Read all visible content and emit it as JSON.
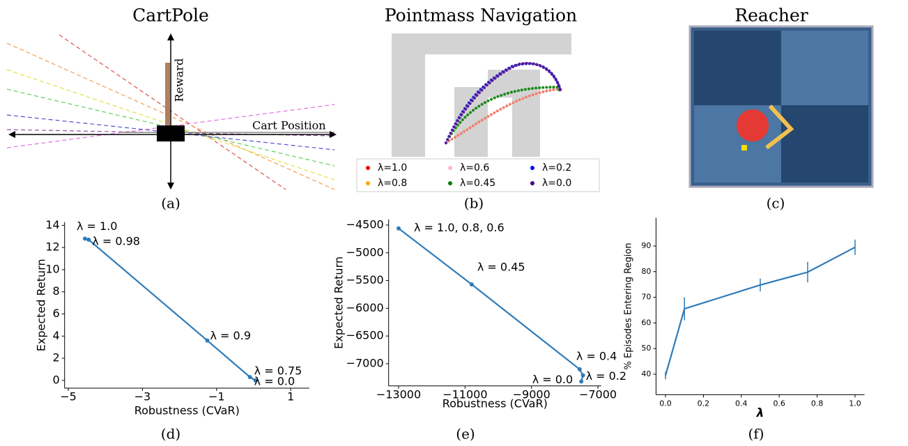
{
  "panel_titles": [
    "CartPole",
    "Pointmass Navigation",
    "Reacher"
  ],
  "captions": [
    "(a)",
    "(b)",
    "(c)",
    "(d)",
    "(e)",
    "(f)"
  ],
  "cartpole": {
    "y_axis_label": "Reward",
    "x_axis_label": "Cart Position"
  },
  "pointmass": {
    "legend": [
      {
        "label": "λ=1.0",
        "color": "#ff0000"
      },
      {
        "label": "λ=0.6",
        "color": "#ffb6c1"
      },
      {
        "label": "λ=0.2",
        "color": "#0000ff"
      },
      {
        "label": "λ=0.8",
        "color": "#ffa500"
      },
      {
        "label": "λ=0.45",
        "color": "#008000"
      },
      {
        "label": "λ=0.0",
        "color": "#4b0082"
      }
    ]
  },
  "chart_data": [
    {
      "type": "line",
      "x_label": "Robustness (CVaR)",
      "y_label": "Expected Return",
      "color": "#2f7bb8",
      "x": [
        -4.55,
        -4.45,
        -1.25,
        -0.1,
        0.05
      ],
      "values": [
        12.8,
        12.7,
        3.6,
        0.3,
        0.0
      ],
      "point_labels": [
        "λ = 1.0",
        "λ = 0.98",
        "λ = 0.9",
        "λ = 0.75",
        "λ = 0.0"
      ],
      "xlim": [
        -5.1,
        1.5
      ],
      "ylim": [
        -0.7,
        14.3
      ],
      "xticks": [
        {
          "value": -5,
          "label": "−5"
        },
        {
          "value": -3,
          "label": "−3"
        },
        {
          "value": -1,
          "label": "−1"
        },
        1
      ],
      "yticks": [
        0,
        2,
        4,
        6,
        8,
        10,
        12,
        14
      ]
    },
    {
      "type": "line",
      "x_label": "Robustness (CVaR)",
      "y_label": "Expected Return",
      "color": "#2f7bb8",
      "x": [
        -13000,
        -10800,
        -7550,
        -7450,
        -7500
      ],
      "values": [
        -4560,
        -5570,
        -7100,
        -7210,
        -7320
      ],
      "point_labels": [
        "λ = 1.0, 0.8, 0.6",
        "λ = 0.45",
        "λ = 0.4",
        "λ = 0.2",
        "λ = 0.0"
      ],
      "xlim": [
        -13300,
        -6900
      ],
      "ylim": [
        -7400,
        -4400
      ],
      "xticks": [
        {
          "value": -13000,
          "label": "−13000"
        },
        {
          "value": -11000,
          "label": "−11000"
        },
        {
          "value": -9000,
          "label": "−9000"
        },
        {
          "value": -7000,
          "label": "−7000"
        }
      ],
      "yticks": [
        {
          "value": -4500,
          "label": "−4500"
        },
        {
          "value": -5000,
          "label": "−5000"
        },
        {
          "value": -5500,
          "label": "−5500"
        },
        {
          "value": -6000,
          "label": "−6000"
        },
        {
          "value": -6500,
          "label": "−6500"
        },
        {
          "value": -7000,
          "label": "−7000"
        }
      ]
    },
    {
      "type": "line",
      "x_label": "λ",
      "y_label": "% Episodes Entering Region",
      "color": "#2f7bb8",
      "x": [
        0.0,
        0.1,
        0.5,
        0.75,
        1.0
      ],
      "values": [
        39.5,
        65.5,
        74.8,
        79.8,
        89.5
      ],
      "errors": [
        1.5,
        4.5,
        2.5,
        4,
        3
      ],
      "xlim": [
        -0.05,
        1.05
      ],
      "ylim": [
        32,
        101
      ],
      "xticks": [
        {
          "value": 0,
          "label": "0.0"
        },
        0.2,
        0.4,
        0.6,
        0.8,
        {
          "value": 1,
          "label": "1.0"
        }
      ],
      "yticks": [
        40,
        50,
        60,
        70,
        80,
        90
      ]
    }
  ]
}
